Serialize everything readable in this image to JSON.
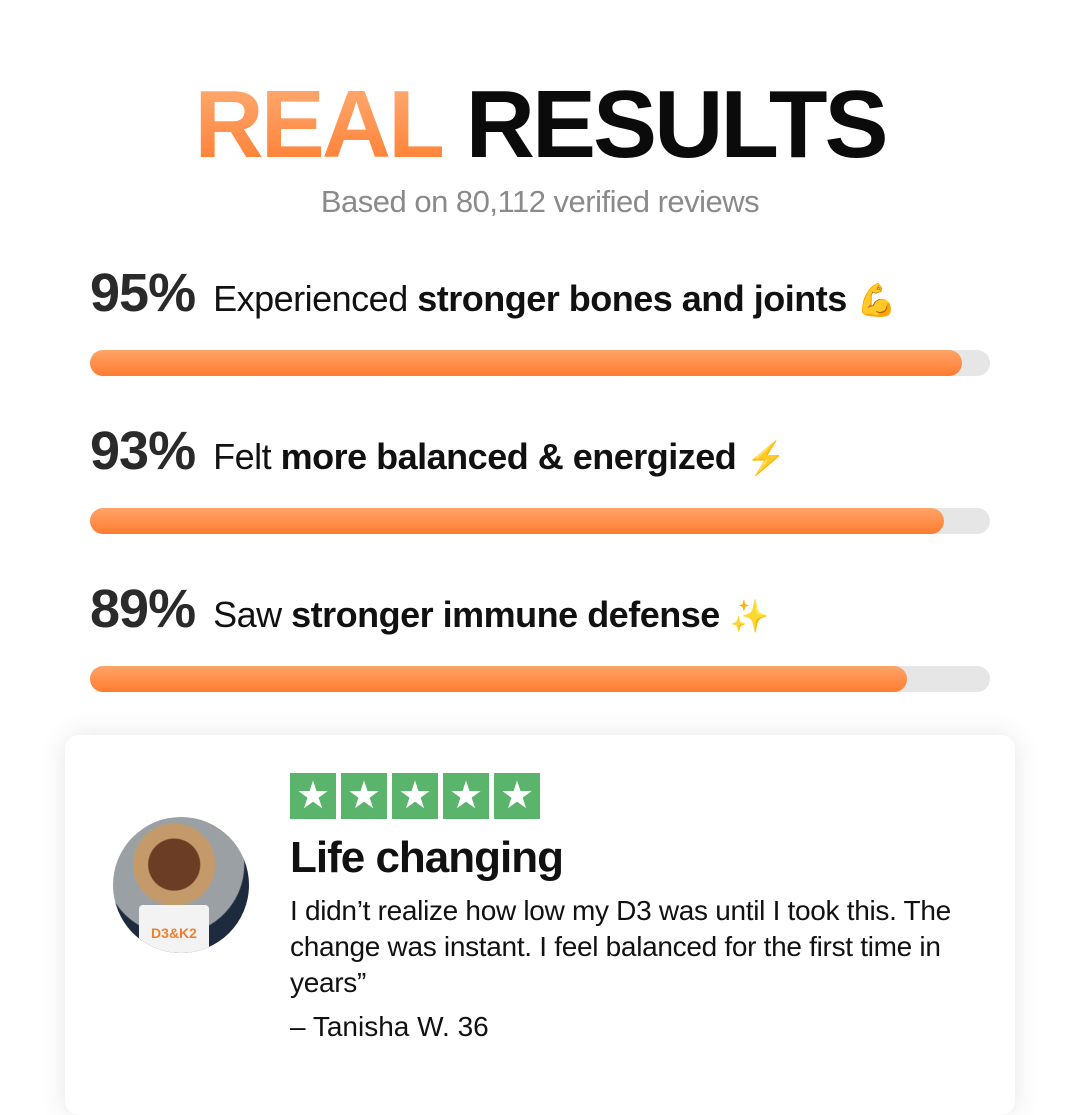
{
  "header": {
    "title_accent": "REAL",
    "title_rest": "RESULTS",
    "subtitle": "Based on 80,112 verified reviews"
  },
  "colors": {
    "accent": "#ff7c30",
    "track": "#e6e6e6",
    "stars": "#5bb46b"
  },
  "stats": [
    {
      "percent": "95%",
      "value": 95,
      "prefix": "Experienced ",
      "bold": "stronger bones and joints",
      "emoji": "💪"
    },
    {
      "percent": "93%",
      "value": 93,
      "prefix": "Felt ",
      "bold": "more balanced & energized",
      "emoji": "⚡"
    },
    {
      "percent": "89%",
      "value": 89,
      "prefix": "Saw ",
      "bold": "stronger immune defense",
      "emoji": "✨"
    }
  ],
  "review": {
    "rating": 5,
    "star_glyph": "★",
    "title": "Life changing",
    "body": "I didn’t realize how low my D3 was until I took this. The change was instant. I feel balanced for the first time in years”",
    "author": "– Tanisha W. 36",
    "avatar_pack_text": "D3&K2"
  }
}
